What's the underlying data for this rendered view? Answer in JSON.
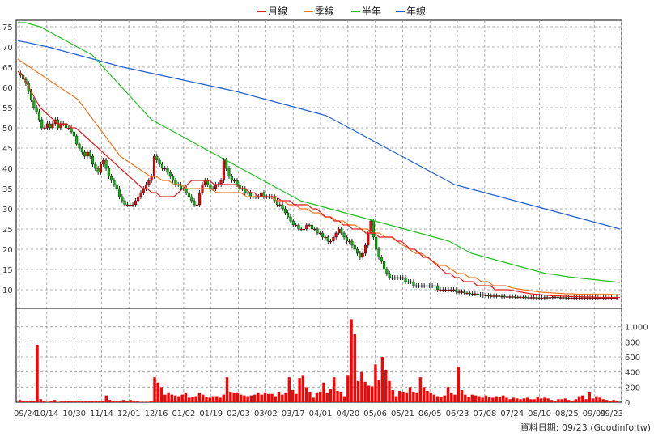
{
  "chart_data": {
    "type": "candlestick",
    "legend": [
      {
        "name": "月線",
        "color": "#e02020"
      },
      {
        "name": "季線",
        "color": "#f07820"
      },
      {
        "name": "半年",
        "color": "#20c020"
      },
      {
        "name": "年線",
        "color": "#2060d0"
      }
    ],
    "price_axis": {
      "ylim": [
        6,
        76
      ],
      "ticks": [
        10,
        15,
        20,
        25,
        30,
        35,
        40,
        45,
        50,
        55,
        60,
        65,
        70,
        75
      ]
    },
    "volume_axis": {
      "ylim": [
        0,
        1200
      ],
      "ticks": [
        0,
        200,
        400,
        600,
        800,
        "1,000"
      ]
    },
    "x_labels": [
      "09/24",
      "10/14",
      "10/30",
      "11/14",
      "12/01",
      "12/16",
      "01/02",
      "01/19",
      "02/03",
      "03/02",
      "03/17",
      "04/01",
      "04/20",
      "05/06",
      "05/21",
      "06/05",
      "06/23",
      "07/08",
      "07/24",
      "08/10",
      "08/25",
      "09/09",
      "09/23"
    ],
    "source_note": "資料日期: 09/23  (Goodinfo.tw)",
    "grid": true,
    "candles_close": [
      63,
      62,
      61,
      59,
      57,
      55,
      54,
      52,
      50,
      50,
      51,
      50,
      51,
      52,
      50,
      51,
      51,
      50,
      50,
      49,
      48,
      46,
      45,
      44,
      43,
      44,
      43,
      41,
      40,
      39,
      41,
      42,
      40,
      38,
      37,
      36,
      35,
      33,
      32,
      31,
      31,
      31,
      31,
      32,
      33,
      34,
      35,
      36,
      37,
      38,
      43,
      42,
      41,
      40,
      40,
      39,
      38,
      37,
      36,
      36,
      35,
      35,
      34,
      33,
      32,
      31,
      31,
      34,
      36,
      37,
      36,
      35,
      35,
      36,
      36,
      37,
      42,
      40,
      38,
      37,
      37,
      36,
      35,
      35,
      34,
      34,
      33,
      33,
      33,
      33,
      34,
      33,
      33,
      33,
      33,
      32,
      31,
      31,
      30,
      29,
      28,
      27,
      26,
      26,
      25,
      25,
      25,
      26,
      26,
      25,
      25,
      24,
      24,
      23,
      23,
      22,
      22,
      23,
      24,
      25,
      24,
      23,
      22,
      22,
      21,
      20,
      19,
      18,
      19,
      21,
      24,
      27,
      23,
      20,
      18,
      17,
      15,
      14,
      13,
      13,
      13,
      13,
      13,
      13,
      12,
      12,
      12,
      11,
      11,
      11,
      11,
      11,
      11,
      11,
      11,
      11,
      10,
      10,
      10,
      10,
      10,
      10,
      10,
      9.5,
      9.5,
      9.5,
      9.2,
      9.2,
      9.0,
      9.0,
      9.0,
      8.8,
      8.8,
      8.6,
      8.6,
      8.5,
      8.5,
      8.5,
      8.5,
      8.4,
      8.4,
      8.3,
      8.3,
      8.3,
      8.3,
      8.2,
      8.2,
      8.2,
      8.2,
      8.1,
      8.1,
      8.1,
      8.1,
      8.0,
      8.0,
      8.0,
      8.1,
      8.1,
      8.1,
      8.2,
      8.2,
      8.1,
      8.1,
      8.1,
      8.0,
      8.0,
      8.0,
      8.0,
      8.0,
      8.0,
      8.0,
      8.0,
      8.0,
      8.0,
      8.0,
      8.0,
      8.0,
      8.0,
      8.0,
      8.0,
      8.0,
      8.0,
      8.0,
      8.0
    ],
    "month_line": [
      64,
      63,
      61,
      59,
      57,
      55,
      54,
      53,
      52,
      51,
      51,
      51,
      50,
      50,
      49,
      48,
      47,
      46,
      45,
      44,
      43,
      42,
      41,
      40,
      39,
      38,
      37,
      36,
      35,
      35,
      34,
      34,
      33,
      33,
      33,
      33,
      34,
      35,
      36,
      37,
      37,
      37,
      37,
      37,
      36,
      36,
      36,
      36,
      36,
      36,
      35,
      35,
      34,
      34,
      33,
      33,
      33,
      33,
      33,
      32,
      32,
      32,
      31,
      31,
      31,
      31,
      30,
      30,
      29,
      28,
      28,
      27,
      27,
      26,
      26,
      25,
      25,
      25,
      24,
      24,
      24,
      23,
      23,
      23,
      23,
      22,
      22,
      21,
      20,
      20,
      19,
      18,
      18,
      17,
      16,
      15,
      14,
      14,
      13,
      13,
      12,
      12,
      12,
      11,
      11,
      11,
      11,
      10,
      10,
      10,
      10,
      9.8,
      9.6,
      9.4,
      9.2,
      9.0,
      8.9,
      8.8,
      8.7,
      8.6,
      8.5,
      8.5,
      8.4,
      8.4,
      8.3,
      8.3,
      8.3,
      8.2,
      8.2,
      8.2,
      8.1,
      8.1,
      8.1,
      8.1,
      8.1,
      8.1
    ],
    "quarter_line": [
      67,
      66,
      65,
      64,
      63,
      62,
      61,
      60,
      59,
      58,
      57,
      55,
      53,
      51,
      49,
      47,
      45,
      43,
      42,
      41,
      40,
      39,
      38,
      38,
      37,
      37,
      36,
      36,
      35,
      35,
      35,
      35,
      35,
      34,
      34,
      34,
      34,
      34,
      33,
      33,
      33,
      33,
      33,
      32,
      32,
      31,
      31,
      30,
      30,
      29,
      29,
      28,
      28,
      27,
      27,
      26,
      26,
      25,
      25,
      24,
      24,
      23,
      23,
      22,
      21,
      20,
      19,
      19,
      18,
      17,
      16,
      16,
      15,
      14,
      14,
      13,
      13,
      12,
      12,
      11,
      11,
      11,
      10.5,
      10.2,
      10,
      9.8,
      9.6,
      9.4,
      9.3,
      9.2,
      9.1,
      9.0,
      9.0,
      8.9,
      8.9,
      8.9,
      8.9,
      8.9,
      8.9,
      8.8,
      8.8
    ],
    "halfyear_line": [
      76,
      76,
      75.5,
      75,
      74,
      73,
      72,
      71,
      70,
      69,
      68,
      66,
      64,
      62,
      60,
      58,
      56,
      54,
      52,
      51,
      50,
      49,
      48,
      47,
      46,
      45,
      44,
      43,
      42,
      41,
      40,
      39,
      38,
      37,
      36,
      35,
      34,
      33,
      32,
      31.5,
      31,
      30.5,
      30,
      29.5,
      29,
      28.5,
      28,
      27.5,
      27,
      26.5,
      26,
      25.5,
      25,
      24.5,
      24,
      23.5,
      23,
      22.5,
      22,
      21,
      20,
      19,
      18.5,
      18,
      17.5,
      17,
      16.5,
      16,
      15.5,
      15,
      14.5,
      14,
      13.8,
      13.5,
      13.2,
      13,
      12.8,
      12.6,
      12.4,
      12.2,
      12.0,
      11.8
    ],
    "year_line": [
      71.5,
      71.2,
      70.8,
      70.4,
      70,
      69.5,
      69,
      68.5,
      68,
      67.5,
      67,
      66.5,
      66,
      65.5,
      65,
      64.6,
      64.2,
      63.8,
      63.4,
      63,
      62.6,
      62.2,
      61.8,
      61.4,
      61,
      60.6,
      60.2,
      59.8,
      59.4,
      59,
      58.5,
      58,
      57.5,
      57,
      56.5,
      56,
      55.5,
      55,
      54.5,
      54,
      53.5,
      53,
      52,
      51,
      50,
      49,
      48,
      47,
      46,
      45,
      44,
      43,
      42,
      41,
      40,
      39,
      38,
      37,
      36,
      35.5,
      35,
      34.5,
      34,
      33.5,
      33,
      32.5,
      32,
      31.5,
      31,
      30.5,
      30,
      29.5,
      29,
      28.5,
      28,
      27.5,
      27,
      26.5,
      26,
      25.5,
      25
    ],
    "volume_values": [
      30,
      15,
      10,
      20,
      15,
      760,
      40,
      10,
      5,
      10,
      30,
      5,
      10,
      10,
      15,
      10,
      10,
      20,
      10,
      10,
      10,
      10,
      15,
      10,
      20,
      90,
      30,
      20,
      10,
      10,
      30,
      20,
      30,
      10,
      10,
      5,
      5,
      5,
      10,
      330,
      260,
      200,
      100,
      120,
      100,
      90,
      80,
      100,
      120,
      60,
      70,
      80,
      120,
      100,
      70,
      60,
      80,
      80,
      60,
      100,
      330,
      140,
      120,
      120,
      100,
      90,
      80,
      90,
      100,
      120,
      100,
      120,
      110,
      110,
      80,
      130,
      100,
      120,
      330,
      160,
      110,
      320,
      350,
      200,
      130,
      60,
      120,
      140,
      260,
      120,
      170,
      330,
      150,
      130,
      80,
      350,
      1100,
      900,
      280,
      400,
      270,
      220,
      210,
      500,
      300,
      600,
      430,
      280,
      160,
      80,
      150,
      130,
      120,
      200,
      140,
      120,
      330,
      200,
      150,
      120,
      100,
      80,
      70,
      90,
      200,
      120,
      100,
      470,
      160,
      100,
      70,
      100,
      90,
      80,
      60,
      90,
      70,
      60,
      80,
      70,
      90,
      60,
      40,
      60,
      50,
      40,
      50,
      60,
      40,
      40,
      70,
      50,
      60,
      50,
      30,
      20,
      40,
      40,
      50,
      30,
      20,
      40,
      80,
      90,
      40,
      130,
      50,
      80,
      60,
      40,
      30,
      20,
      30,
      20
    ]
  }
}
